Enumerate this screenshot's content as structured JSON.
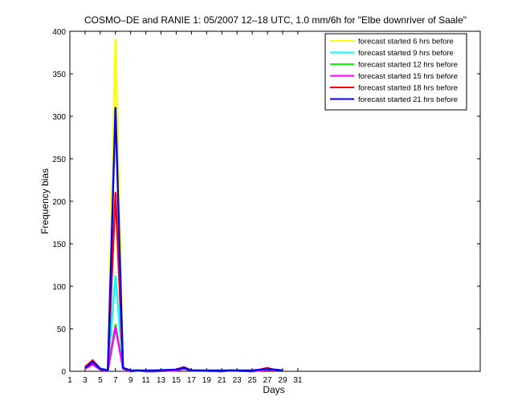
{
  "chart_data": {
    "type": "line",
    "title": "COSMO–DE and RANIE 1: 05/2007 12–18 UTC, 1.0 mm/6h for \"Elbe downriver of Saale\"",
    "xlabel": "Days",
    "ylabel": "Frequency bias",
    "xlim": [
      1,
      55
    ],
    "ylim": [
      0,
      400
    ],
    "xticks": [
      1,
      3,
      5,
      7,
      9,
      11,
      13,
      15,
      17,
      19,
      21,
      23,
      25,
      27,
      29,
      31
    ],
    "yticks": [
      0,
      50,
      100,
      150,
      200,
      250,
      300,
      350,
      400
    ],
    "legend_position": "top-right",
    "series": [
      {
        "name": "forecast started 6 hrs before",
        "color": "#ffff00",
        "points": [
          [
            3,
            3
          ],
          [
            4,
            8
          ],
          [
            5,
            2
          ],
          [
            6,
            1
          ],
          [
            7,
            390
          ],
          [
            8,
            5
          ],
          [
            9,
            0
          ],
          [
            10,
            1
          ],
          [
            11,
            0
          ],
          [
            12,
            0
          ],
          [
            15,
            1
          ],
          [
            16,
            3
          ],
          [
            17,
            1
          ],
          [
            21,
            0
          ],
          [
            22,
            1
          ],
          [
            25,
            0
          ],
          [
            26,
            1
          ],
          [
            27,
            2
          ],
          [
            28,
            1
          ]
        ]
      },
      {
        "name": "forecast started 9 hrs before",
        "color": "#00ffff",
        "points": [
          [
            3,
            4
          ],
          [
            4,
            10
          ],
          [
            5,
            3
          ],
          [
            6,
            1
          ],
          [
            7,
            112
          ],
          [
            8,
            4
          ],
          [
            9,
            0
          ],
          [
            10,
            1
          ],
          [
            11,
            0
          ],
          [
            12,
            0
          ],
          [
            15,
            1
          ],
          [
            16,
            4
          ],
          [
            17,
            1
          ],
          [
            21,
            0
          ],
          [
            22,
            1
          ],
          [
            25,
            0
          ],
          [
            26,
            1
          ],
          [
            27,
            3
          ],
          [
            28,
            1
          ]
        ]
      },
      {
        "name": "forecast started 12 hrs before",
        "color": "#00ff00",
        "points": [
          [
            3,
            3
          ],
          [
            4,
            9
          ],
          [
            5,
            2
          ],
          [
            6,
            1
          ],
          [
            7,
            55
          ],
          [
            8,
            3
          ],
          [
            9,
            0
          ],
          [
            10,
            1
          ],
          [
            11,
            0
          ],
          [
            12,
            0
          ],
          [
            15,
            1
          ],
          [
            16,
            3
          ],
          [
            17,
            1
          ],
          [
            21,
            0
          ],
          [
            22,
            1
          ],
          [
            25,
            0
          ],
          [
            26,
            1
          ],
          [
            27,
            2
          ],
          [
            28,
            1
          ]
        ]
      },
      {
        "name": "forecast started 15 hrs before",
        "color": "#ff00ff",
        "points": [
          [
            3,
            3
          ],
          [
            4,
            8
          ],
          [
            5,
            2
          ],
          [
            6,
            1
          ],
          [
            7,
            52
          ],
          [
            8,
            3
          ],
          [
            9,
            0
          ],
          [
            10,
            1
          ],
          [
            11,
            0
          ],
          [
            12,
            0
          ],
          [
            15,
            1
          ],
          [
            16,
            3
          ],
          [
            17,
            1
          ],
          [
            21,
            0
          ],
          [
            22,
            1
          ],
          [
            25,
            0
          ],
          [
            26,
            1
          ],
          [
            27,
            2
          ],
          [
            28,
            1
          ]
        ]
      },
      {
        "name": "forecast started 18 hrs before",
        "color": "#ff0000",
        "points": [
          [
            3,
            5
          ],
          [
            4,
            13
          ],
          [
            5,
            3
          ],
          [
            6,
            1
          ],
          [
            7,
            210
          ],
          [
            8,
            4
          ],
          [
            9,
            0
          ],
          [
            10,
            1
          ],
          [
            11,
            0
          ],
          [
            12,
            0
          ],
          [
            15,
            2
          ],
          [
            16,
            5
          ],
          [
            17,
            1
          ],
          [
            21,
            0
          ],
          [
            22,
            1
          ],
          [
            25,
            0
          ],
          [
            26,
            2
          ],
          [
            27,
            4
          ],
          [
            28,
            1
          ]
        ]
      },
      {
        "name": "forecast started 21 hrs before",
        "color": "#0000ff",
        "points": [
          [
            3,
            4
          ],
          [
            4,
            11
          ],
          [
            5,
            3
          ],
          [
            6,
            1
          ],
          [
            7,
            310
          ],
          [
            8,
            4
          ],
          [
            9,
            1
          ],
          [
            10,
            1
          ],
          [
            11,
            1
          ],
          [
            12,
            1
          ],
          [
            15,
            2
          ],
          [
            16,
            4
          ],
          [
            17,
            1
          ],
          [
            21,
            1
          ],
          [
            22,
            1
          ],
          [
            23,
            1
          ],
          [
            25,
            1
          ],
          [
            26,
            2
          ],
          [
            27,
            3
          ],
          [
            28,
            2
          ],
          [
            29,
            1
          ]
        ]
      }
    ]
  }
}
